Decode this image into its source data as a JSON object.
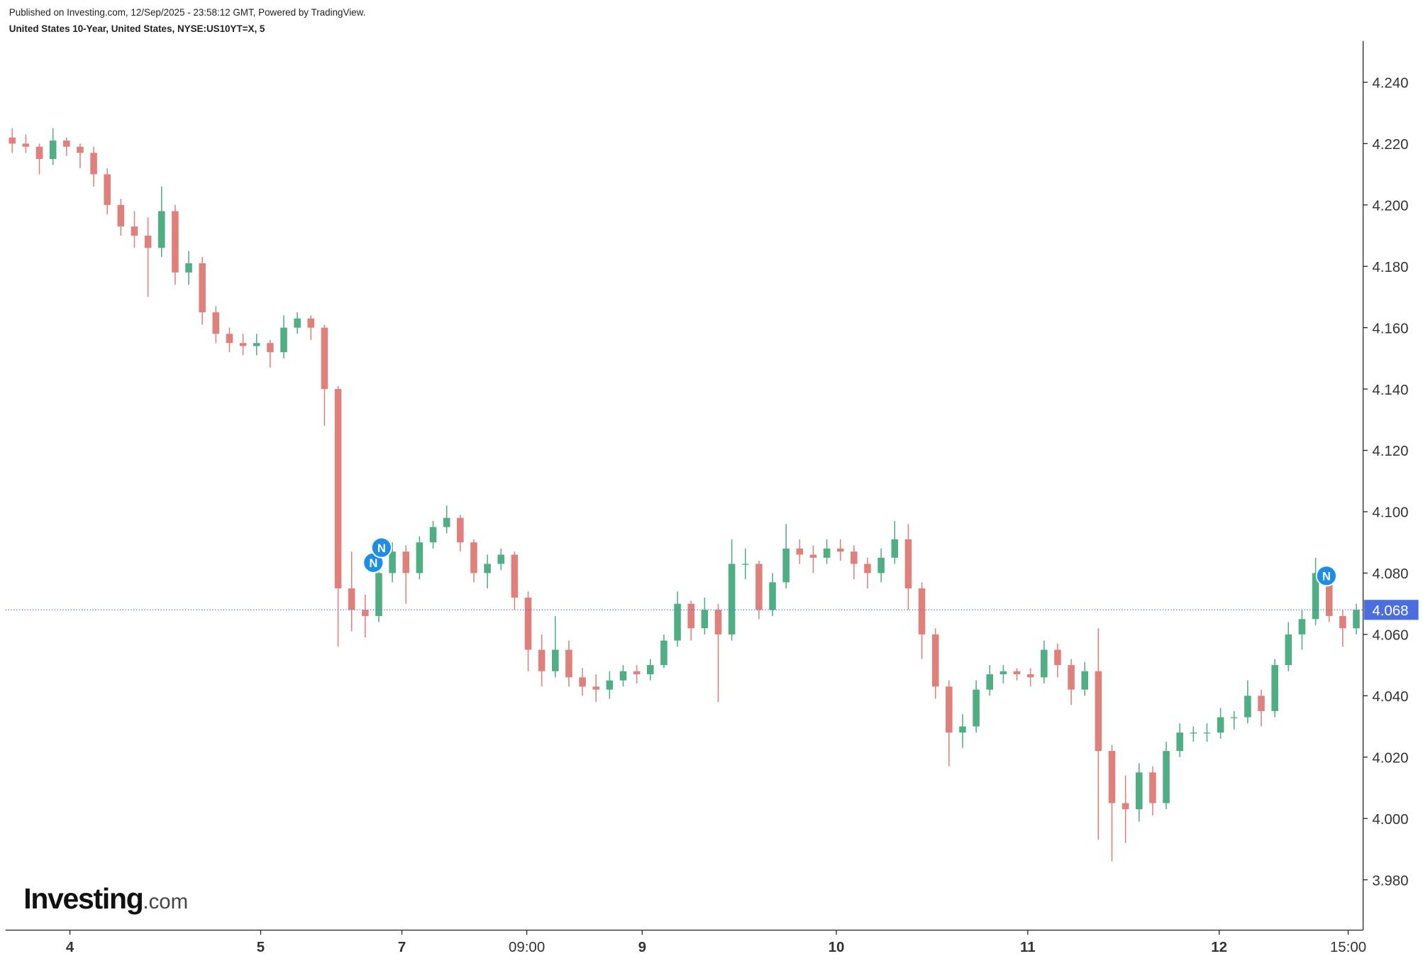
{
  "header": {
    "published": "Published on Investing.com, 12/Sep/2025 - 23:58:12 GMT, Powered by TradingView.",
    "instrument": "United States 10-Year, United States, NYSE:US10YT=X, 5"
  },
  "logo": {
    "main": "Investing",
    "suffix": ".com"
  },
  "chart_data": {
    "type": "candlestick",
    "up_color": "#4fae84",
    "down_color": "#e0807a",
    "xlim": [
      -0.5,
      99.5
    ],
    "xticks": [
      {
        "value": 4.25,
        "label": "4"
      },
      {
        "value": 18.3,
        "label": "5"
      },
      {
        "value": 28.7,
        "label": "7"
      },
      {
        "value": 37.9,
        "label": "09:00"
      },
      {
        "value": 46.4,
        "label": "9"
      },
      {
        "value": 60.7,
        "label": "10"
      },
      {
        "value": 74.8,
        "label": "11"
      },
      {
        "value": 88.9,
        "label": "12"
      },
      {
        "value": 98.4,
        "label": "15:00"
      }
    ],
    "ylim": [
      3.9636,
      4.2535
    ],
    "yticks": [
      {
        "value": 3.98,
        "label": "3.980"
      },
      {
        "value": 4.0,
        "label": "4.000"
      },
      {
        "value": 4.02,
        "label": "4.020"
      },
      {
        "value": 4.04,
        "label": "4.040"
      },
      {
        "value": 4.06,
        "label": "4.060"
      },
      {
        "value": 4.08,
        "label": "4.080"
      },
      {
        "value": 4.1,
        "label": "4.100"
      },
      {
        "value": 4.12,
        "label": "4.120"
      },
      {
        "value": 4.14,
        "label": "4.140"
      },
      {
        "value": 4.16,
        "label": "4.160"
      },
      {
        "value": 4.18,
        "label": "4.180"
      },
      {
        "value": 4.2,
        "label": "4.200"
      },
      {
        "value": 4.22,
        "label": "4.220"
      },
      {
        "value": 4.24,
        "label": "4.240"
      }
    ],
    "last_price": 4.068,
    "last_price_color": "#4a6ee0",
    "open": [
      4.222,
      4.22,
      4.219,
      4.215,
      4.221,
      4.219,
      4.217,
      4.21,
      4.2,
      4.193,
      4.19,
      4.186,
      4.198,
      4.178,
      4.181,
      4.165,
      4.158,
      4.155,
      4.154,
      4.155,
      4.152,
      4.16,
      4.163,
      4.16,
      4.14,
      4.075,
      4.068,
      4.066,
      4.08,
      4.087,
      4.08,
      4.09,
      4.095,
      4.098,
      4.09,
      4.08,
      4.083,
      4.086,
      4.072,
      4.055,
      4.048,
      4.055,
      4.046,
      4.043,
      4.042,
      4.045,
      4.048,
      4.047,
      4.05,
      4.058,
      4.07,
      4.062,
      4.068,
      4.06,
      4.083,
      4.083,
      4.068,
      4.077,
      4.088,
      4.086,
      4.085,
      4.088,
      4.087,
      4.083,
      4.08,
      4.085,
      4.091,
      4.075,
      4.06,
      4.043,
      4.028,
      4.03,
      4.042,
      4.047,
      4.048,
      4.047,
      4.046,
      4.055,
      4.05,
      4.042,
      4.048,
      4.022,
      4.005,
      4.003,
      4.015,
      4.005,
      4.022,
      4.028,
      4.028,
      4.028,
      4.033,
      4.033,
      4.04,
      4.035,
      4.05,
      4.06,
      4.065,
      4.08,
      4.066,
      4.062
    ],
    "high": [
      4.225,
      4.223,
      4.22,
      4.225,
      4.222,
      4.22,
      4.219,
      4.212,
      4.202,
      4.198,
      4.196,
      4.206,
      4.2,
      4.185,
      4.183,
      4.167,
      4.16,
      4.158,
      4.158,
      4.156,
      4.164,
      4.165,
      4.164,
      4.161,
      4.141,
      4.087,
      4.073,
      4.083,
      4.09,
      4.089,
      4.092,
      4.097,
      4.102,
      4.099,
      4.091,
      4.086,
      4.088,
      4.087,
      4.074,
      4.06,
      4.066,
      4.058,
      4.049,
      4.047,
      4.048,
      4.05,
      4.05,
      4.052,
      4.06,
      4.074,
      4.071,
      4.072,
      4.07,
      4.091,
      4.088,
      4.084,
      4.08,
      4.096,
      4.091,
      4.089,
      4.091,
      4.091,
      4.089,
      4.085,
      4.088,
      4.097,
      4.096,
      4.077,
      4.062,
      4.045,
      4.034,
      4.045,
      4.05,
      4.05,
      4.049,
      4.049,
      4.058,
      4.057,
      4.052,
      4.051,
      4.062,
      4.024,
      4.014,
      4.018,
      4.017,
      4.025,
      4.031,
      4.03,
      4.031,
      4.036,
      4.035,
      4.045,
      4.042,
      4.052,
      4.064,
      4.068,
      4.085,
      4.082,
      4.068,
      4.07
    ],
    "low": [
      4.217,
      4.217,
      4.21,
      4.213,
      4.216,
      4.212,
      4.206,
      4.197,
      4.19,
      4.186,
      4.17,
      4.183,
      4.174,
      4.174,
      4.161,
      4.155,
      4.152,
      4.151,
      4.151,
      4.147,
      4.15,
      4.158,
      4.156,
      4.128,
      4.056,
      4.061,
      4.059,
      4.064,
      4.077,
      4.07,
      4.078,
      4.088,
      4.093,
      4.087,
      4.077,
      4.075,
      4.081,
      4.068,
      4.048,
      4.043,
      4.046,
      4.043,
      4.04,
      4.038,
      4.039,
      4.043,
      4.044,
      4.045,
      4.049,
      4.056,
      4.058,
      4.06,
      4.038,
      4.058,
      4.078,
      4.065,
      4.066,
      4.075,
      4.083,
      4.08,
      4.083,
      4.084,
      4.078,
      4.075,
      4.077,
      4.083,
      4.068,
      4.052,
      4.039,
      4.017,
      4.023,
      4.028,
      4.04,
      4.044,
      4.045,
      4.043,
      4.044,
      4.046,
      4.037,
      4.04,
      3.993,
      3.986,
      3.992,
      3.999,
      4.001,
      4.003,
      4.02,
      4.025,
      4.025,
      4.026,
      4.029,
      4.031,
      4.03,
      4.033,
      4.048,
      4.055,
      4.063,
      4.064,
      4.056,
      4.06
    ],
    "close": [
      4.22,
      4.219,
      4.215,
      4.221,
      4.219,
      4.217,
      4.21,
      4.2,
      4.193,
      4.19,
      4.186,
      4.198,
      4.178,
      4.181,
      4.165,
      4.158,
      4.155,
      4.154,
      4.155,
      4.152,
      4.16,
      4.163,
      4.16,
      4.14,
      4.075,
      4.068,
      4.066,
      4.08,
      4.087,
      4.08,
      4.09,
      4.095,
      4.098,
      4.09,
      4.08,
      4.083,
      4.086,
      4.072,
      4.055,
      4.048,
      4.055,
      4.046,
      4.043,
      4.042,
      4.045,
      4.048,
      4.047,
      4.05,
      4.058,
      4.07,
      4.062,
      4.068,
      4.06,
      4.083,
      4.083,
      4.068,
      4.077,
      4.088,
      4.086,
      4.085,
      4.088,
      4.087,
      4.083,
      4.08,
      4.085,
      4.091,
      4.075,
      4.06,
      4.043,
      4.028,
      4.03,
      4.042,
      4.047,
      4.048,
      4.047,
      4.046,
      4.055,
      4.05,
      4.042,
      4.048,
      4.022,
      4.005,
      4.003,
      4.015,
      4.005,
      4.022,
      4.028,
      4.028,
      4.028,
      4.033,
      4.033,
      4.04,
      4.035,
      4.05,
      4.06,
      4.065,
      4.08,
      4.066,
      4.062,
      4.068
    ],
    "news_markers": [
      {
        "x": 26.6,
        "y": 4.0834,
        "label": "N"
      },
      {
        "x": 27.2,
        "y": 4.0883,
        "label": "N"
      },
      {
        "x": 96.8,
        "y": 4.0791,
        "label": "N"
      }
    ],
    "marker_color": "#1e8de6"
  }
}
